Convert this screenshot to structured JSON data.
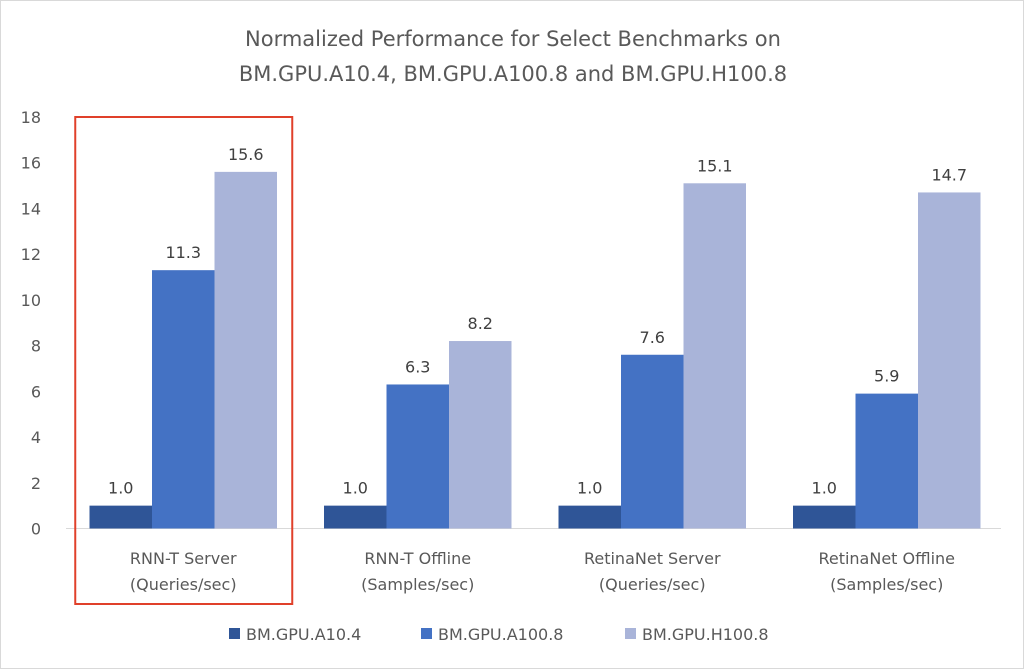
{
  "chart_data": {
    "type": "bar",
    "title_lines": [
      "Normalized Performance for Select Benchmarks on",
      "BM.GPU.A10.4, BM.GPU.A100.8 and BM.GPU.H100.8"
    ],
    "categories": [
      [
        "RNN-T Server",
        "(Queries/sec)"
      ],
      [
        "RNN-T Offline",
        "(Samples/sec)"
      ],
      [
        "RetinaNet Server",
        "(Queries/sec)"
      ],
      [
        "RetinaNet Offline",
        "(Samples/sec)"
      ]
    ],
    "series": [
      {
        "name": "BM.GPU.A10.4",
        "color": "#2F5597",
        "values": [
          1.0,
          1.0,
          1.0,
          1.0
        ]
      },
      {
        "name": "BM.GPU.A100.8",
        "color": "#4472C4",
        "values": [
          11.3,
          6.3,
          7.6,
          5.9
        ]
      },
      {
        "name": "BM.GPU.H100.8",
        "color": "#A9B4D9",
        "values": [
          15.6,
          8.2,
          15.1,
          14.7
        ]
      }
    ],
    "ylim": [
      0,
      18
    ],
    "yticks": [
      0,
      2,
      4,
      6,
      8,
      10,
      12,
      14,
      16,
      18
    ],
    "grid": false,
    "legend": "bottom",
    "highlight": {
      "category_index": 0,
      "color": "#E0402A"
    }
  }
}
